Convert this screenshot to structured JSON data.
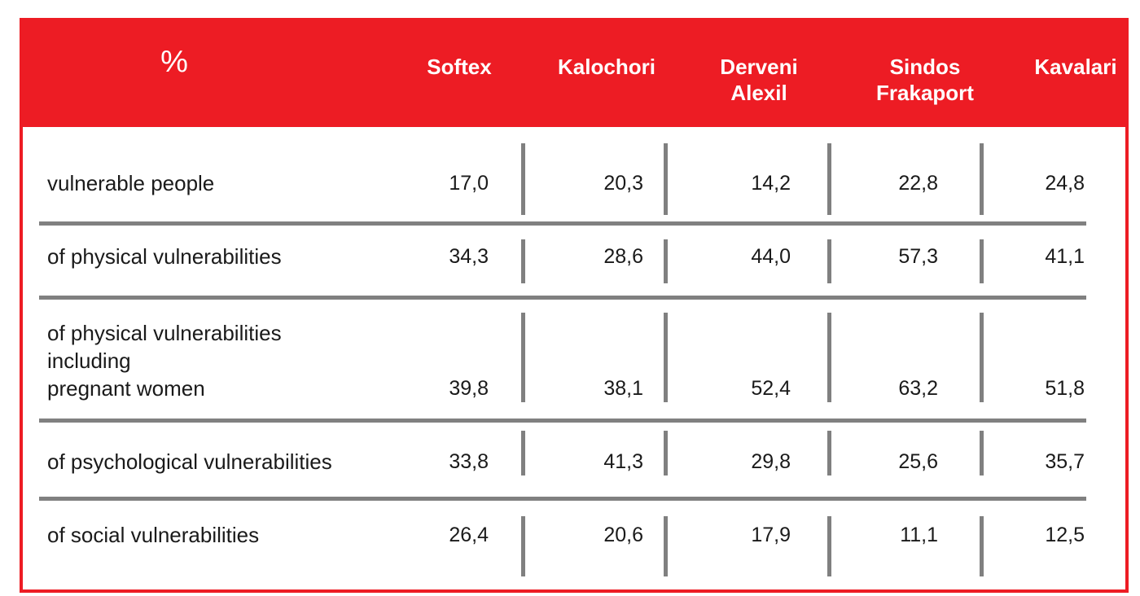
{
  "chart_data": {
    "type": "table",
    "corner_label": "%",
    "columns": [
      {
        "lines": [
          "Softex"
        ]
      },
      {
        "lines": [
          "Kalochori"
        ]
      },
      {
        "lines": [
          "Derveni",
          "Alexil"
        ]
      },
      {
        "lines": [
          "Sindos",
          "Frakaport"
        ]
      },
      {
        "lines": [
          "Kavalari"
        ]
      }
    ],
    "rows": [
      {
        "label_lines": [
          "vulnerable people"
        ],
        "values": [
          "17,0",
          "20,3",
          "14,2",
          "22,8",
          "24,8"
        ]
      },
      {
        "label_lines": [
          "of physical vulnerabilities"
        ],
        "values": [
          "34,3",
          "28,6",
          "44,0",
          "57,3",
          "41,1"
        ]
      },
      {
        "label_lines": [
          "of physical vulnerabilities",
          "including",
          "pregnant women"
        ],
        "values": [
          "39,8",
          "38,1",
          "52,4",
          "63,2",
          "51,8"
        ]
      },
      {
        "label_lines": [
          "of psychological vulnerabilities"
        ],
        "values": [
          "33,8",
          "41,3",
          "29,8",
          "25,6",
          "35,7"
        ]
      },
      {
        "label_lines": [
          "of social vulnerabilities"
        ],
        "values": [
          "26,4",
          "20,6",
          "17,9",
          "11,1",
          "12,5"
        ]
      }
    ],
    "colors": {
      "header_bg": "#ed1c24",
      "header_text": "#ffffff",
      "rule": "#808080",
      "body_text": "#1a1a1a"
    }
  }
}
